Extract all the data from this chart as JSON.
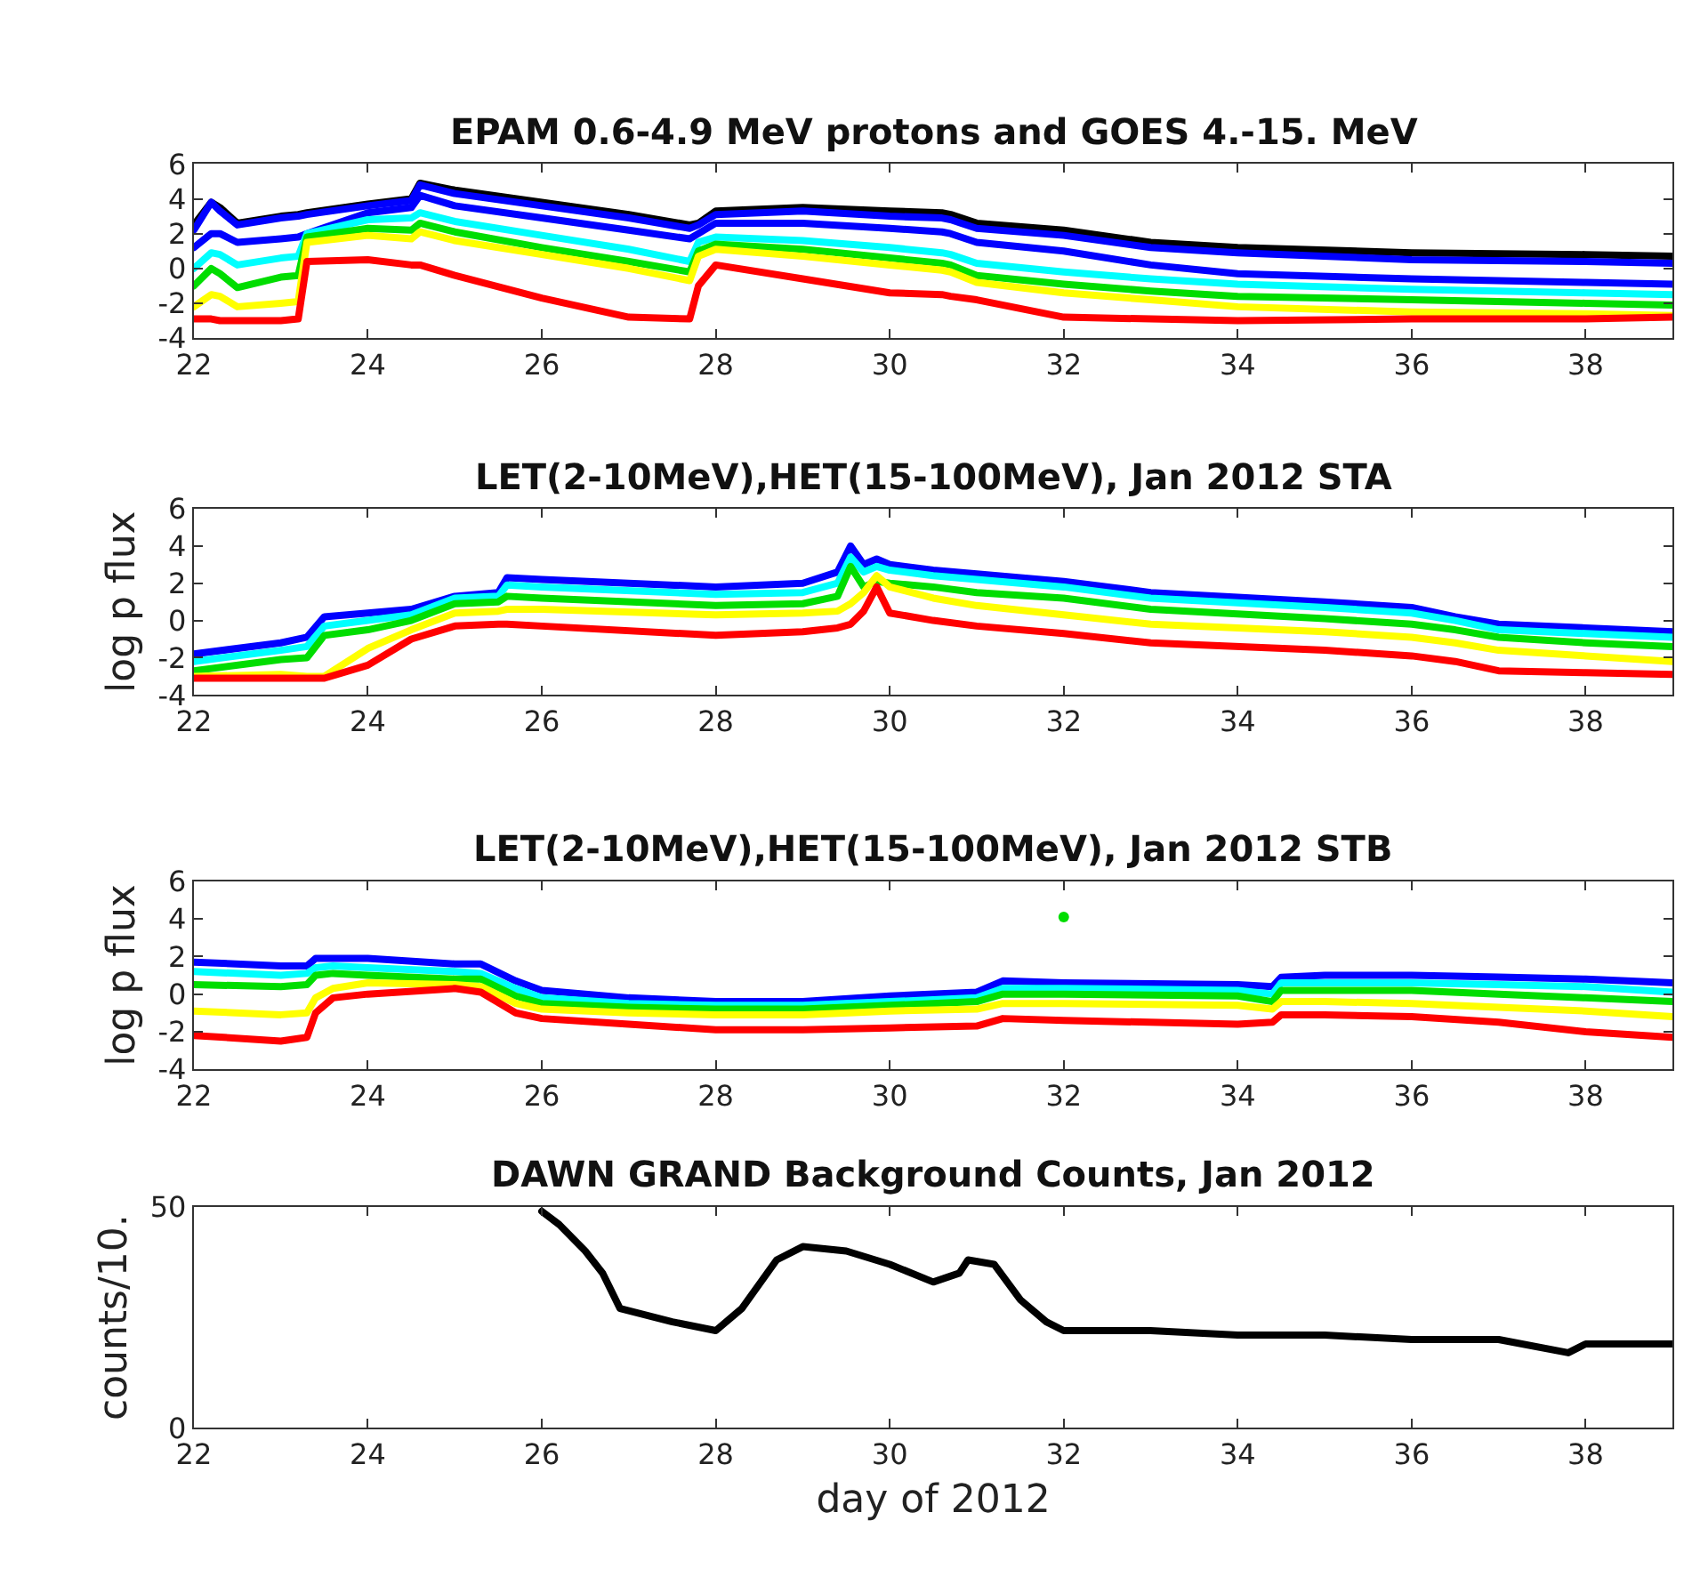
{
  "chart_data": [
    {
      "type": "line",
      "title": "EPAM 0.6-4.9 MeV protons and GOES 4.-15. MeV",
      "xlim": [
        22,
        39
      ],
      "xticks": [
        22,
        24,
        26,
        28,
        30,
        32,
        34,
        36,
        38
      ],
      "ylim": [
        -4,
        6
      ],
      "yticks": [
        -4,
        -2,
        0,
        2,
        4,
        6
      ],
      "line_style": "solid",
      "x": [
        22,
        22.2,
        22.3,
        22.5,
        23,
        23.2,
        23.3,
        24,
        24.5,
        24.6,
        25,
        26,
        27,
        27.7,
        27.8,
        28,
        29,
        30,
        30.6,
        30.7,
        31,
        32,
        33,
        34,
        36,
        38,
        39
      ],
      "series": [
        {
          "color": "#000000",
          "values": [
            2.5,
            3.8,
            3.5,
            2.6,
            3.0,
            3.1,
            3.2,
            3.7,
            4.0,
            4.9,
            4.5,
            3.8,
            3.1,
            2.5,
            2.6,
            3.3,
            3.5,
            3.3,
            3.2,
            3.1,
            2.6,
            2.2,
            1.5,
            1.2,
            0.9,
            0.8,
            0.7
          ]
        },
        {
          "color": "#0000ff",
          "values": [
            2.2,
            3.8,
            3.3,
            2.5,
            2.9,
            3.0,
            3.1,
            3.6,
            3.9,
            4.8,
            4.3,
            3.6,
            2.9,
            2.3,
            2.5,
            3.1,
            3.3,
            3.0,
            2.9,
            2.8,
            2.3,
            1.9,
            1.2,
            0.9,
            0.5,
            0.4,
            0.3
          ]
        },
        {
          "color": "#0000ff",
          "values": [
            1.2,
            2.0,
            2.0,
            1.5,
            1.7,
            1.8,
            2.0,
            3.2,
            3.5,
            4.2,
            3.6,
            2.9,
            2.2,
            1.7,
            2.0,
            2.6,
            2.6,
            2.3,
            2.1,
            2.0,
            1.5,
            1.0,
            0.2,
            -0.3,
            -0.6,
            -0.8,
            -0.9
          ]
        },
        {
          "color": "#00ffff",
          "values": [
            0,
            0.9,
            0.8,
            0.2,
            0.6,
            0.7,
            2.0,
            2.8,
            2.9,
            3.2,
            2.7,
            1.9,
            1.1,
            0.4,
            1.5,
            1.8,
            1.6,
            1.2,
            0.9,
            0.8,
            0.3,
            -0.2,
            -0.6,
            -0.9,
            -1.2,
            -1.4,
            -1.5
          ]
        },
        {
          "color": "#00dd00",
          "values": [
            -1,
            0,
            -0.3,
            -1.1,
            -0.5,
            -0.4,
            1.8,
            2.3,
            2.2,
            2.6,
            2.1,
            1.2,
            0.4,
            -0.2,
            1.0,
            1.4,
            1.1,
            0.6,
            0.3,
            0.2,
            -0.4,
            -0.9,
            -1.3,
            -1.6,
            -1.8,
            -2.0,
            -2.1
          ]
        },
        {
          "color": "#ffff00",
          "values": [
            -2.2,
            -1.5,
            -1.6,
            -2.2,
            -2.0,
            -1.9,
            1.5,
            1.9,
            1.7,
            2.1,
            1.6,
            0.8,
            0,
            -0.7,
            0.7,
            1.1,
            0.7,
            0.2,
            -0.1,
            -0.2,
            -0.8,
            -1.4,
            -1.8,
            -2.2,
            -2.5,
            -2.6,
            -2.7
          ]
        },
        {
          "color": "#ff0000",
          "values": [
            -2.9,
            -2.9,
            -3.0,
            -3.0,
            -3.0,
            -2.9,
            0.4,
            0.5,
            0.2,
            0.2,
            -0.4,
            -1.7,
            -2.8,
            -2.9,
            -1.0,
            0.2,
            -0.6,
            -1.4,
            -1.5,
            -1.6,
            -1.8,
            -2.8,
            -2.9,
            -3.0,
            -2.9,
            -2.9,
            -2.8
          ]
        }
      ]
    },
    {
      "type": "line",
      "title": "LET(2-10MeV),HET(15-100MeV), Jan 2012 STA",
      "ylabel": "log p flux",
      "xlim": [
        22,
        39
      ],
      "xticks": [
        22,
        24,
        26,
        28,
        30,
        32,
        34,
        36,
        38
      ],
      "ylim": [
        -4,
        6
      ],
      "yticks": [
        -4,
        -2,
        0,
        2,
        4,
        6
      ],
      "line_style": "solid",
      "x": [
        22,
        23,
        23.3,
        23.5,
        24,
        24.5,
        25,
        25.5,
        25.6,
        26,
        28,
        29,
        29.4,
        29.55,
        29.7,
        29.85,
        30,
        30.5,
        31,
        32,
        33,
        35,
        36,
        36.5,
        37,
        38,
        39
      ],
      "series": [
        {
          "color": "#0000ff",
          "values": [
            -1.8,
            -1.2,
            -0.9,
            0.2,
            0.4,
            0.6,
            1.3,
            1.5,
            2.3,
            2.2,
            1.8,
            2.0,
            2.6,
            4.0,
            3.0,
            3.3,
            3.0,
            2.7,
            2.5,
            2.1,
            1.5,
            1.0,
            0.7,
            0.2,
            -0.2,
            -0.4,
            -0.6
          ]
        },
        {
          "color": "#00ffff",
          "values": [
            -2.2,
            -1.6,
            -1.4,
            -0.3,
            0.0,
            0.3,
            1.2,
            1.3,
            1.9,
            1.8,
            1.4,
            1.5,
            2.0,
            3.4,
            2.6,
            2.9,
            2.7,
            2.4,
            2.2,
            1.8,
            1.2,
            0.7,
            0.4,
            0,
            -0.5,
            -0.7,
            -0.9
          ]
        },
        {
          "color": "#00dd00",
          "values": [
            -2.7,
            -2.1,
            -2.0,
            -0.8,
            -0.5,
            0.0,
            0.9,
            1.0,
            1.3,
            1.2,
            0.8,
            0.9,
            1.3,
            2.9,
            1.8,
            2.1,
            2.0,
            1.8,
            1.5,
            1.2,
            0.6,
            0.1,
            -0.2,
            -0.5,
            -0.9,
            -1.2,
            -1.4
          ]
        },
        {
          "color": "#ffff00",
          "values": [
            -3.0,
            -2.9,
            -3.0,
            -3.0,
            -1.5,
            -0.5,
            0.4,
            0.5,
            0.6,
            0.6,
            0.3,
            0.4,
            0.5,
            0.9,
            1.5,
            2.4,
            1.8,
            1.2,
            0.8,
            0.3,
            -0.2,
            -0.6,
            -0.9,
            -1.2,
            -1.6,
            -1.9,
            -2.2
          ]
        },
        {
          "color": "#ff0000",
          "values": [
            -3.1,
            -3.1,
            -3.1,
            -3.1,
            -2.4,
            -1.0,
            -0.3,
            -0.2,
            -0.2,
            -0.3,
            -0.8,
            -0.6,
            -0.4,
            -0.2,
            0.5,
            1.8,
            0.4,
            0.0,
            -0.3,
            -0.7,
            -1.2,
            -1.6,
            -1.9,
            -2.2,
            -2.7,
            -2.8,
            -2.9
          ]
        }
      ]
    },
    {
      "type": "line",
      "title": "LET(2-10MeV),HET(15-100MeV), Jan 2012 STB",
      "ylabel": "log p flux",
      "xlim": [
        22,
        39
      ],
      "xticks": [
        22,
        24,
        26,
        28,
        30,
        32,
        34,
        36,
        38
      ],
      "ylim": [
        -4,
        6
      ],
      "yticks": [
        -4,
        -2,
        0,
        2,
        4,
        6
      ],
      "line_style": "solid",
      "x": [
        22,
        23,
        23.3,
        23.4,
        23.6,
        24,
        25,
        25.3,
        25.7,
        26,
        27,
        28,
        29,
        30,
        31,
        31.3,
        32,
        34,
        34.4,
        34.5,
        35,
        36,
        37,
        38,
        39
      ],
      "series": [
        {
          "color": "#0000ff",
          "values": [
            1.7,
            1.5,
            1.5,
            1.9,
            1.9,
            1.9,
            1.6,
            1.6,
            0.7,
            0.2,
            -0.2,
            -0.4,
            -0.4,
            -0.1,
            0.1,
            0.7,
            0.6,
            0.5,
            0.4,
            0.9,
            1.0,
            1.0,
            0.9,
            0.8,
            0.6
          ]
        },
        {
          "color": "#00ffff",
          "values": [
            1.2,
            1.0,
            1.1,
            1.4,
            1.5,
            1.4,
            1.2,
            1.1,
            0.3,
            -0.2,
            -0.5,
            -0.6,
            -0.6,
            -0.4,
            -0.2,
            0.3,
            0.3,
            0.2,
            0.0,
            0.6,
            0.6,
            0.6,
            0.5,
            0.4,
            0.1
          ]
        },
        {
          "color": "#00dd00",
          "values": [
            0.5,
            0.4,
            0.5,
            1.0,
            1.1,
            1.0,
            0.8,
            0.8,
            -0.1,
            -0.5,
            -0.7,
            -0.8,
            -0.8,
            -0.6,
            -0.4,
            0,
            0,
            -0.1,
            -0.4,
            0.2,
            0.2,
            0.2,
            0.0,
            -0.2,
            -0.4
          ]
        },
        {
          "color": "#ffff00",
          "values": [
            -0.9,
            -1.1,
            -1.0,
            -0.2,
            0.3,
            0.6,
            0.5,
            0.4,
            -0.5,
            -0.8,
            -1.0,
            -1.1,
            -1.1,
            -0.9,
            -0.8,
            -0.5,
            -0.5,
            -0.6,
            -0.8,
            -0.4,
            -0.4,
            -0.5,
            -0.7,
            -0.9,
            -1.2
          ]
        },
        {
          "color": "#ff0000",
          "values": [
            -2.2,
            -2.5,
            -2.3,
            -1.0,
            -0.2,
            0.0,
            0.3,
            0.1,
            -1.0,
            -1.3,
            -1.6,
            -1.9,
            -1.9,
            -1.8,
            -1.7,
            -1.3,
            -1.4,
            -1.6,
            -1.5,
            -1.1,
            -1.1,
            -1.2,
            -1.5,
            -2.0,
            -2.3
          ]
        },
        {
          "type": "scatter",
          "color": "#00dd00",
          "x": [
            32
          ],
          "values": [
            4.1
          ]
        }
      ]
    },
    {
      "type": "line",
      "title": "DAWN GRAND Background Counts, Jan 2012",
      "xlabel": "day of 2012",
      "ylabel": "counts/10.",
      "xlim": [
        22,
        39
      ],
      "xticks": [
        22,
        24,
        26,
        28,
        30,
        32,
        34,
        36,
        38
      ],
      "ylim": [
        0,
        50
      ],
      "yticks": [
        0,
        50
      ],
      "line_style": "solid",
      "x": [
        26,
        26.2,
        26.5,
        26.7,
        26.9,
        27.5,
        28,
        28.3,
        28.7,
        29,
        29.5,
        30,
        30.5,
        30.8,
        30.9,
        31.2,
        31.5,
        31.8,
        32,
        33,
        34,
        35,
        36,
        37,
        37.8,
        38,
        39
      ],
      "series": [
        {
          "color": "#000000",
          "values": [
            49,
            46,
            40,
            35,
            27,
            24,
            22,
            27,
            38,
            41,
            40,
            37,
            33,
            35,
            38,
            37,
            29,
            24,
            22,
            22,
            21,
            21,
            20,
            20,
            17,
            19,
            19
          ]
        }
      ]
    }
  ]
}
